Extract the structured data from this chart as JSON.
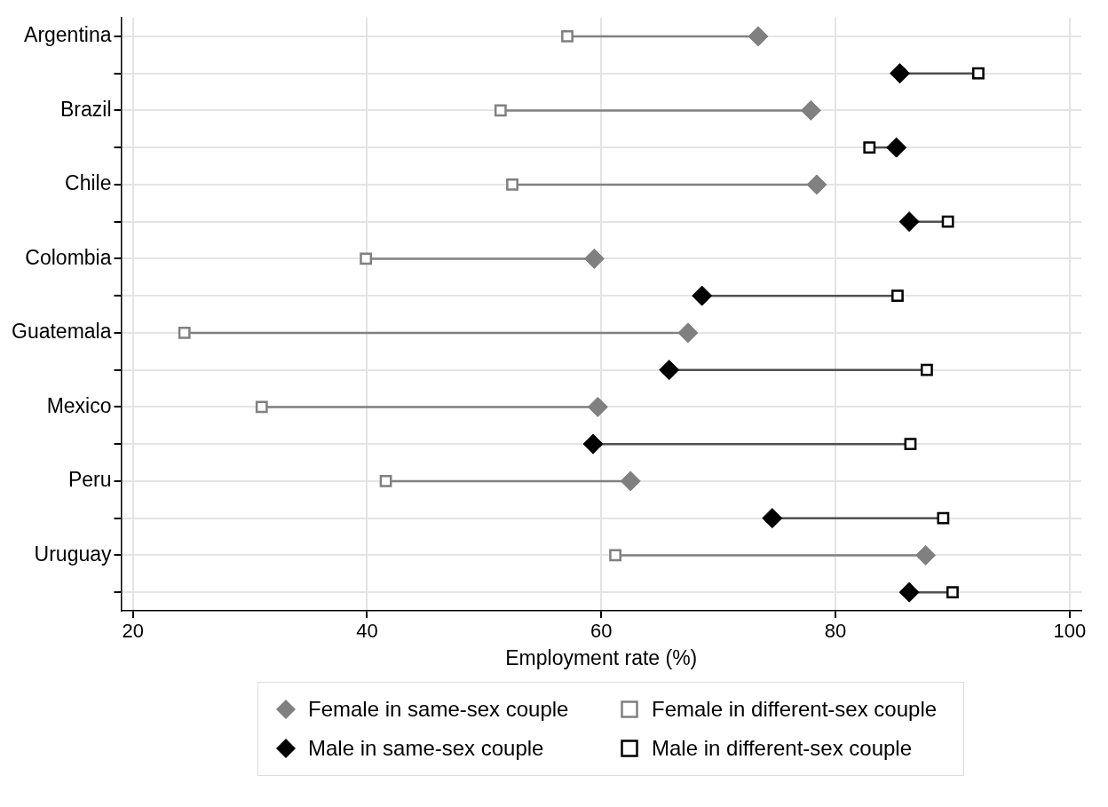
{
  "chart_data": {
    "type": "scatter",
    "orientation": "horizontal",
    "xlabel": "Employment rate (%)",
    "categories": [
      "Argentina",
      null,
      "Brazil",
      null,
      "Chile",
      null,
      "Colombia",
      null,
      "Guatemala",
      null,
      "Mexico",
      null,
      "Peru",
      null,
      "Uruguay",
      null
    ],
    "series": [
      {
        "name": "Female in same-sex couple",
        "color": "#808080",
        "marker": "diamond",
        "values": [
          73.4,
          null,
          77.9,
          null,
          78.4,
          null,
          59.4,
          null,
          67.4,
          null,
          59.7,
          null,
          62.5,
          null,
          87.7,
          null
        ]
      },
      {
        "name": "Female in different-sex couple",
        "color": "#808080",
        "marker": "square",
        "values": [
          57.1,
          null,
          51.4,
          null,
          52.4,
          null,
          39.9,
          null,
          24.4,
          null,
          31.0,
          null,
          41.6,
          null,
          61.2,
          null
        ]
      },
      {
        "name": "Male in same-sex couple",
        "color": "#000000",
        "marker": "diamond",
        "values": [
          null,
          85.5,
          null,
          85.2,
          null,
          86.3,
          null,
          68.6,
          null,
          65.8,
          null,
          59.3,
          null,
          74.6,
          null,
          86.3
        ]
      },
      {
        "name": "Male in different-sex couple",
        "color": "#000000",
        "marker": "square",
        "values": [
          null,
          92.2,
          null,
          82.9,
          null,
          89.6,
          null,
          85.3,
          null,
          87.8,
          null,
          86.4,
          null,
          89.2,
          null,
          90.0
        ]
      }
    ],
    "xlim": [
      19,
      101
    ],
    "xticks": [
      20,
      40,
      60,
      80,
      100
    ],
    "grid": true,
    "legend": "bottom"
  }
}
